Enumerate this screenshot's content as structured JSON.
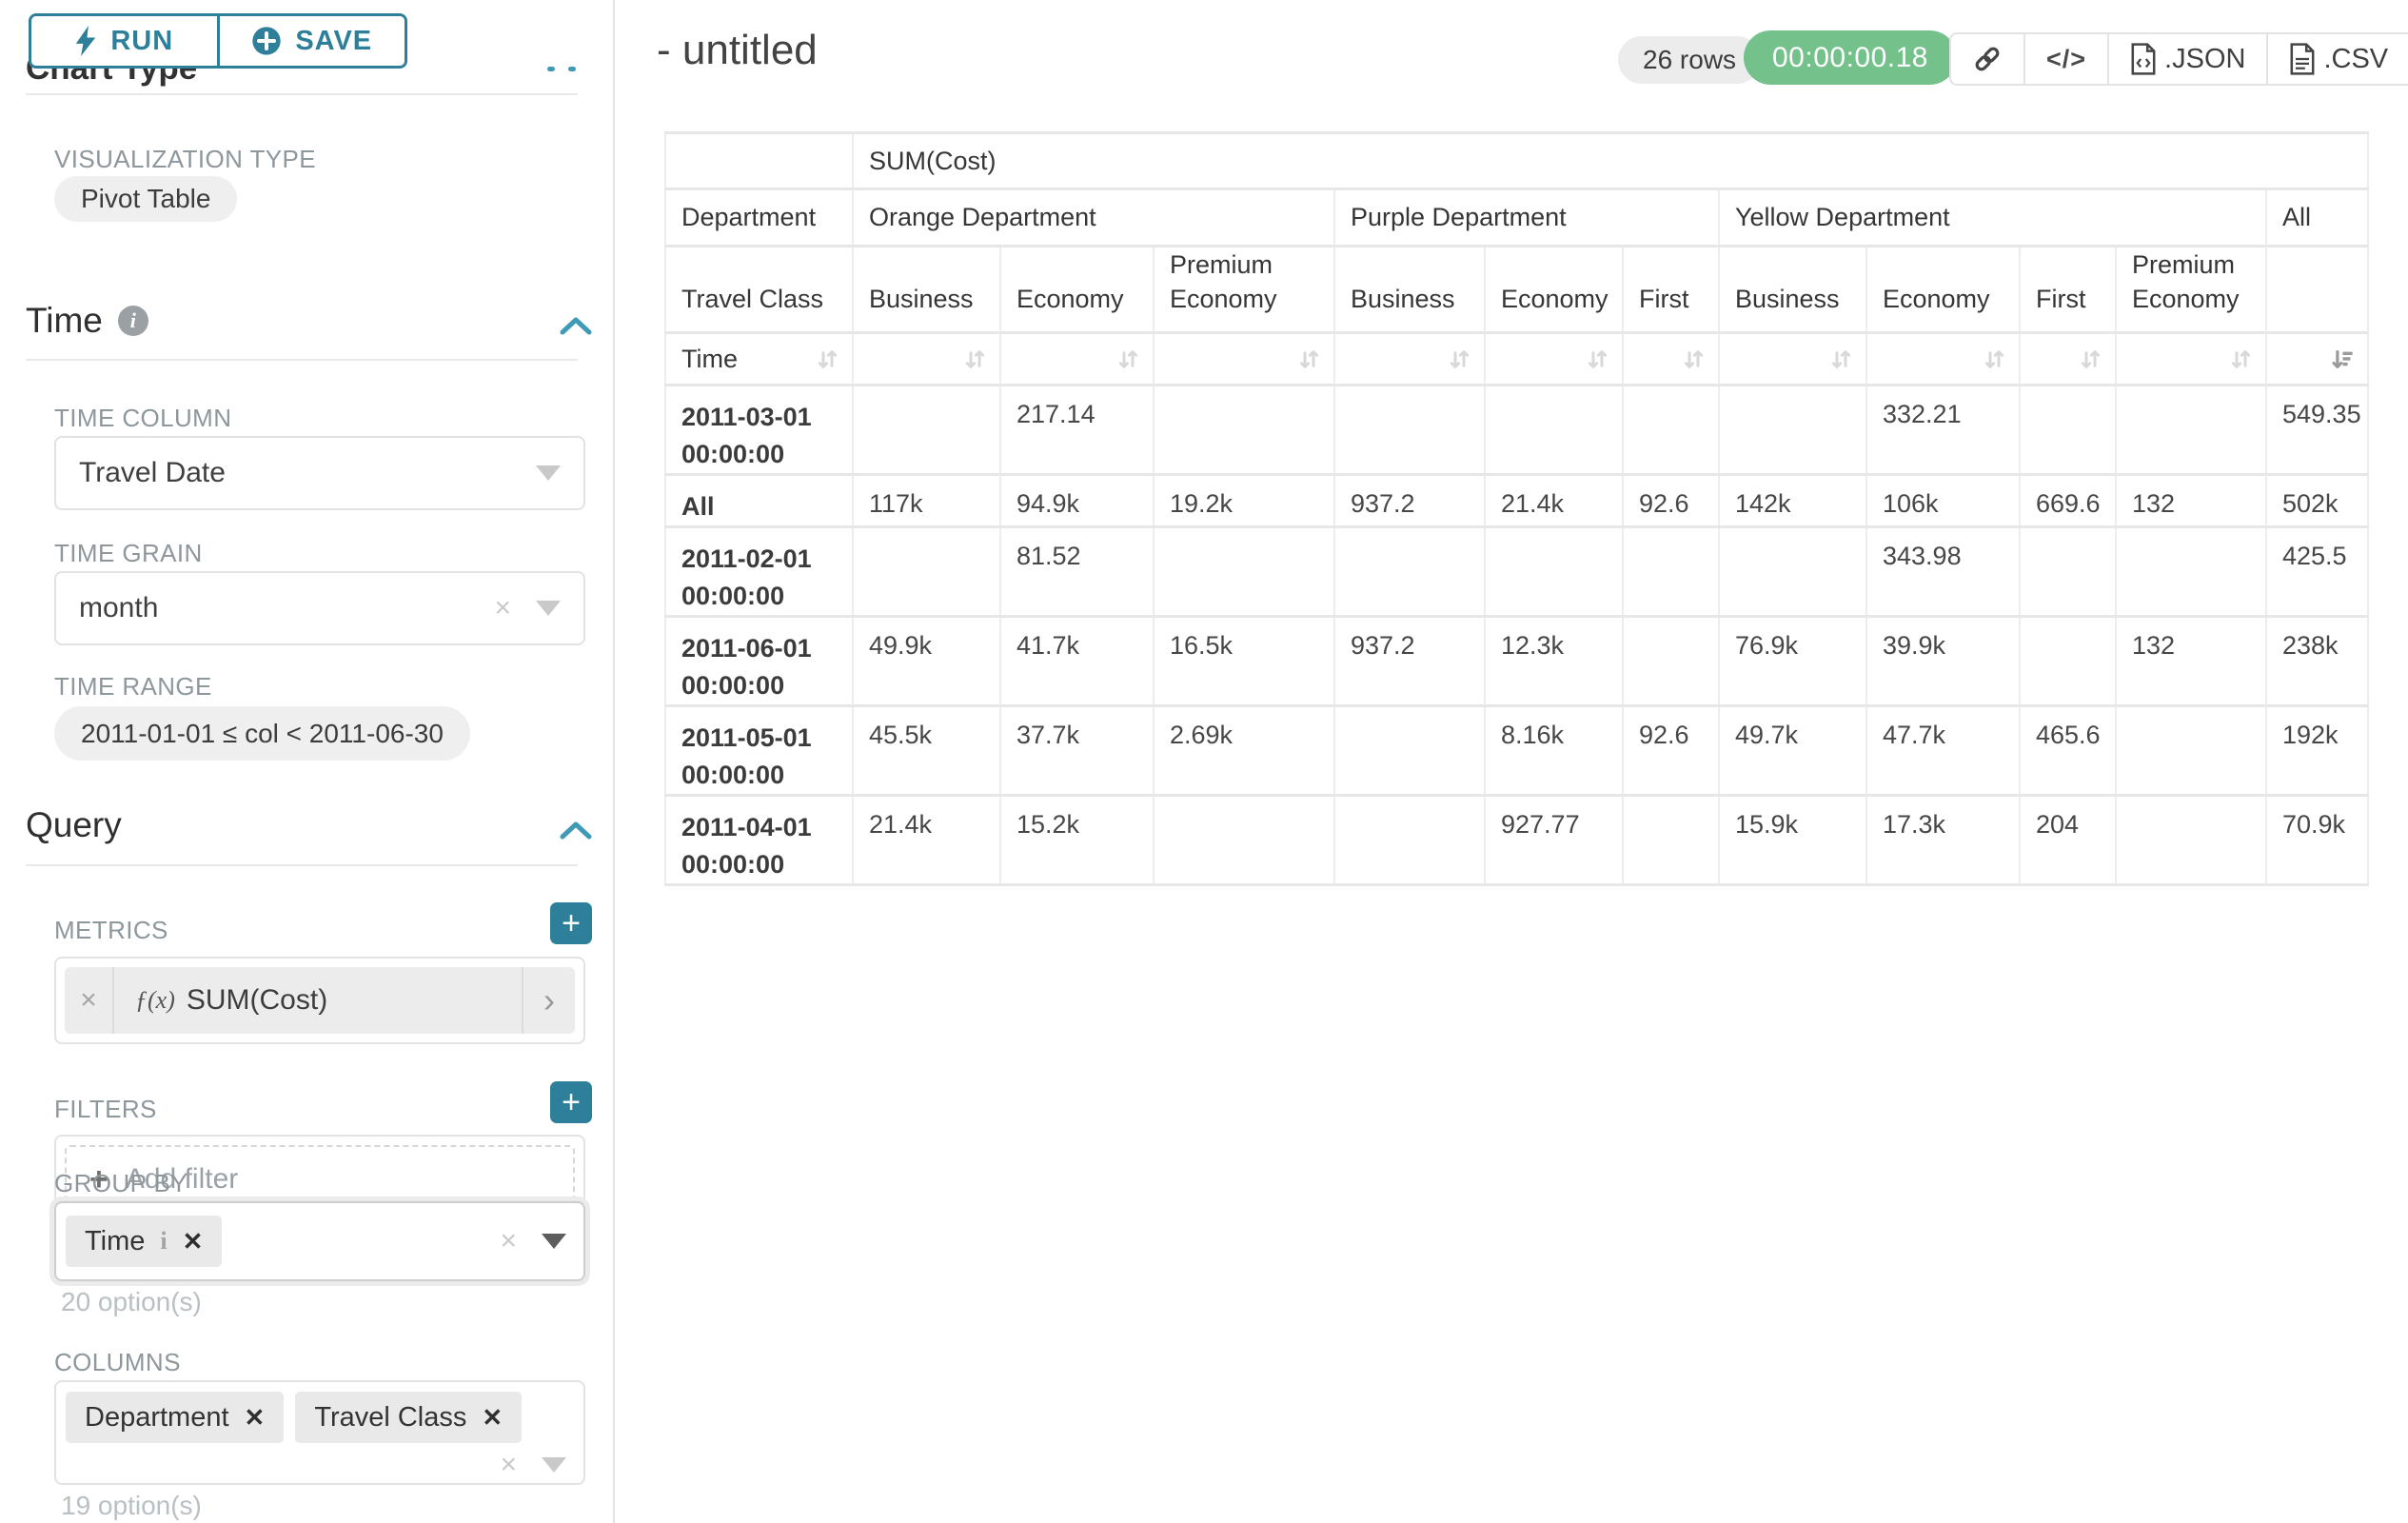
{
  "left_panel": {
    "run_label": "RUN",
    "save_label": "SAVE",
    "chart_type_section": "Chart Type",
    "viz_type_label": "VISUALIZATION TYPE",
    "viz_type_value": "Pivot Table",
    "time_section": "Time",
    "time_column_label": "TIME COLUMN",
    "time_column_value": "Travel Date",
    "time_grain_label": "TIME GRAIN",
    "time_grain_value": "month",
    "time_range_label": "TIME RANGE",
    "time_range_value": "2011-01-01 ≤ col < 2011-06-30",
    "query_section": "Query",
    "metrics_label": "METRICS",
    "metric_fx": "ƒ(x)",
    "metric_value": "SUM(Cost)",
    "filters_label": "FILTERS",
    "add_filter_label": "Add filter",
    "group_by_label": "GROUP BY",
    "group_by_chips": [
      {
        "label": "Time",
        "has_info": true
      }
    ],
    "group_by_helper": "20 option(s)",
    "columns_label": "COLUMNS",
    "columns_chips": [
      {
        "label": "Department"
      },
      {
        "label": "Travel Class"
      }
    ],
    "columns_helper": "19 option(s)"
  },
  "header": {
    "title": "- untitled",
    "rows_badge": "26 rows",
    "timer": "00:00:00.18",
    "json_label": ".JSON",
    "csv_label": ".CSV"
  },
  "pivot": {
    "metric": "SUM(Cost)",
    "corner_labels": {
      "department": "Department",
      "travel_class": "Travel Class",
      "time": "Time"
    },
    "col_groups": [
      {
        "name": "Orange Department",
        "cols": [
          "Business",
          "Economy",
          "Premium Economy"
        ]
      },
      {
        "name": "Purple Department",
        "cols": [
          "Business",
          "Economy",
          "First"
        ]
      },
      {
        "name": "Yellow Department",
        "cols": [
          "Business",
          "Economy",
          "First",
          "Premium Economy"
        ]
      },
      {
        "name": "All",
        "cols": [
          ""
        ]
      }
    ],
    "sorted_desc_last_col": true,
    "rows": [
      {
        "label": "2011-03-01 00:00:00",
        "values": [
          "",
          "217.14",
          "",
          "",
          "",
          "",
          "",
          "332.21",
          "",
          "",
          "549.35"
        ]
      },
      {
        "label": "All",
        "values": [
          "117k",
          "94.9k",
          "19.2k",
          "937.2",
          "21.4k",
          "92.6",
          "142k",
          "106k",
          "669.6",
          "132",
          "502k"
        ]
      },
      {
        "label": "2011-02-01 00:00:00",
        "values": [
          "",
          "81.52",
          "",
          "",
          "",
          "",
          "",
          "343.98",
          "",
          "",
          "425.5"
        ]
      },
      {
        "label": "2011-06-01 00:00:00",
        "values": [
          "49.9k",
          "41.7k",
          "16.5k",
          "937.2",
          "12.3k",
          "",
          "76.9k",
          "39.9k",
          "",
          "132",
          "238k"
        ]
      },
      {
        "label": "2011-05-01 00:00:00",
        "values": [
          "45.5k",
          "37.7k",
          "2.69k",
          "",
          "8.16k",
          "92.6",
          "49.7k",
          "47.7k",
          "465.6",
          "",
          "192k"
        ]
      },
      {
        "label": "2011-04-01 00:00:00",
        "values": [
          "21.4k",
          "15.2k",
          "",
          "",
          "927.77",
          "",
          "15.9k",
          "17.3k",
          "204",
          "",
          "70.9k"
        ]
      }
    ]
  },
  "colors": {
    "teal": "#2e7f99",
    "green": "#74c18c"
  }
}
